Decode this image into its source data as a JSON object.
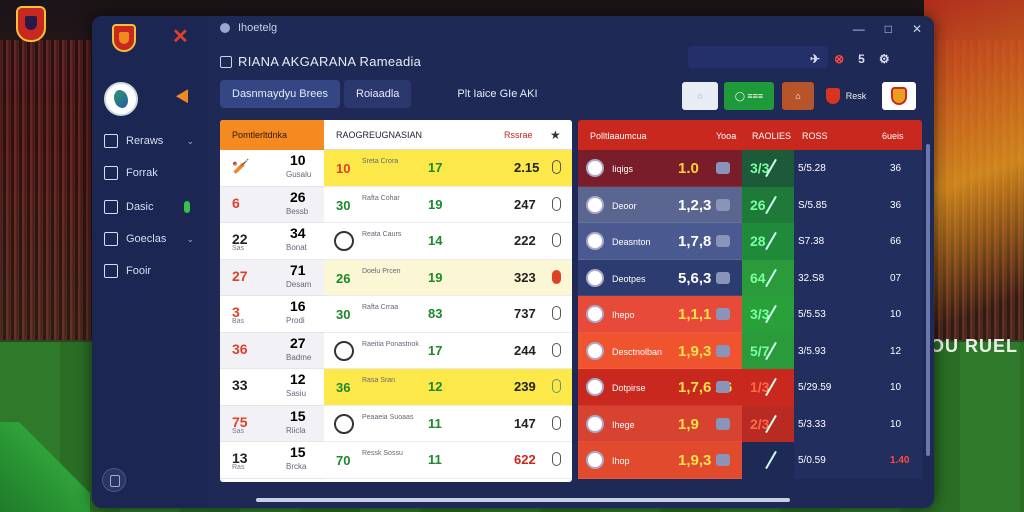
{
  "background": {
    "banner_text": "OU RUEL"
  },
  "window": {
    "titlebar_text": "Ihoetelg",
    "controls": [
      "—",
      "□",
      "✕"
    ],
    "title": "RIANA AKGARANA Rameadia",
    "tools": [
      "✈",
      "⊗",
      "5",
      "⚙"
    ]
  },
  "sidebar": {
    "items": [
      {
        "label": "Reraws",
        "chevron": "⌄"
      },
      {
        "label": "Forrak",
        "chevron": ""
      },
      {
        "label": "Dasic",
        "chevron": ""
      },
      {
        "label": "Goeclas",
        "chevron": "⌄"
      },
      {
        "label": "Fooir",
        "chevron": ""
      }
    ]
  },
  "tabs": [
    {
      "label": "Dasnmaydyu Brees"
    },
    {
      "label": "Roiaadla"
    },
    {
      "label": "Plt Iaice GIe AKI"
    }
  ],
  "chips": [
    {
      "label": "◌"
    },
    {
      "label": "◯ ≡≡≡"
    },
    {
      "label": "⌂"
    },
    {
      "label": "Resk"
    },
    {
      "label": "⌂"
    }
  ],
  "left_table": {
    "header": "Pomtlerltdnka",
    "rows": [
      {
        "a": "🏏",
        "b": "10",
        "c": "Gusalu"
      },
      {
        "a": "6",
        "b": "26",
        "c": "Bessb"
      },
      {
        "a": "22",
        "b": "34",
        "c": "Bonat",
        "s": "Sas"
      },
      {
        "a": "27",
        "b": "71",
        "c": "Desam"
      },
      {
        "a": "3",
        "b": "16",
        "c": "Prodi",
        "s": "Bas"
      },
      {
        "a": "36",
        "b": "27",
        "c": "Badme"
      },
      {
        "a": "33",
        "b": "12",
        "c": "Sasiu"
      },
      {
        "a": "75",
        "b": "15",
        "c": "Riicla",
        "s": "Sas"
      },
      {
        "a": "13",
        "b": "15",
        "c": "Brcka",
        "s": "Ras"
      }
    ]
  },
  "mid_table": {
    "header": "RAOGREUGNASIAN",
    "header_right": "Rssrae",
    "star": "★",
    "rows": [
      {
        "n1": "10",
        "nm": "Sreta Crora",
        "n2": "17",
        "n3": "2.15"
      },
      {
        "n1": "30",
        "nm": "Rafta Cohar",
        "n2": "19",
        "n3": "247"
      },
      {
        "n1": "",
        "nm": "Reata Caurs",
        "n2": "14",
        "n3": "222"
      },
      {
        "n1": "26",
        "nm": "Doelu Prcen",
        "n2": "19",
        "n3": "323"
      },
      {
        "n1": "30",
        "nm": "Rafta Crraa",
        "n2": "83",
        "n3": "737"
      },
      {
        "n1": "",
        "nm": "Raeitia Ponastnok",
        "n2": "17",
        "n3": "244"
      },
      {
        "n1": "36",
        "nm": "Rasa Sran",
        "n2": "12",
        "n3": "239"
      },
      {
        "n1": "",
        "nm": "Peaaeia Suoaas",
        "n2": "11",
        "n3": "147"
      },
      {
        "n1": "70",
        "nm": "Ressk Sossu",
        "n2": "11",
        "n3": "622"
      }
    ]
  },
  "right_panel": {
    "headers": [
      "Polltlaaumcua",
      "Yooa",
      "RAOLIES",
      "ROSS",
      "6ueis"
    ],
    "rows": [
      {
        "nm": "Iiqigs",
        "v": "1.0",
        "g": "3/3",
        "m": "5/5.28",
        "e": "36",
        "bg": "#7a1d2a",
        "gbg": "#1d5a3a"
      },
      {
        "nm": "Deoor",
        "v": "1,2,3",
        "g": "26",
        "m": "S/5.85",
        "e": "36",
        "bg": "#5a6690",
        "gbg": "#1f7a3a"
      },
      {
        "nm": "Deasnton",
        "v": "1,7,8",
        "g": "28",
        "m": "S7.38",
        "e": "66",
        "bg": "#4a5a90",
        "gbg": "#1f8a3a"
      },
      {
        "nm": "Deotpes",
        "v": "5,6,3",
        "g": "64",
        "m": "32.S8",
        "e": "07",
        "bg": "#2c3b70",
        "gbg": "#2a9a3a"
      },
      {
        "nm": "Ihepo",
        "v": "1,1,1",
        "g": "3/3",
        "m": "5/5.53",
        "e": "10",
        "bg": "#e84a3a",
        "gbg": "#2aa03a"
      },
      {
        "nm": "Desctnolban",
        "v": "1,9,3",
        "g": "5/7",
        "m": "3/5.93",
        "e": "12",
        "bg": "#f0542e",
        "gbg": "#2a9a3a"
      },
      {
        "nm": "Dotpirse",
        "v": "1,7,6 26",
        "g": "1/3",
        "m": "5/29.59",
        "e": "10",
        "bg": "#c8281e",
        "gbg": "#c8281e"
      },
      {
        "nm": "Ihege",
        "v": "1,9",
        "g": "2/3",
        "m": "5/3.33",
        "e": "10",
        "bg": "#d84230",
        "gbg": "#b82a22"
      },
      {
        "nm": "Ihop",
        "v": "1,9,3",
        "g": "",
        "m": "5/0.59",
        "e": "1.40",
        "bg": "#e24a2e",
        "gbg": "#1e2a55",
        "ered": true
      }
    ]
  }
}
